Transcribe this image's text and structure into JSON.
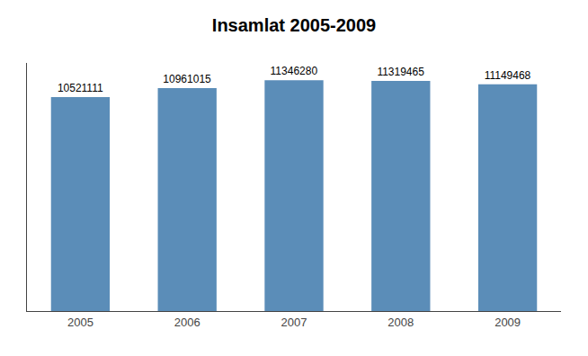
{
  "chart_data": {
    "type": "bar",
    "title": "Insamlat 2005-2009",
    "categories": [
      "2005",
      "2006",
      "2007",
      "2008",
      "2009"
    ],
    "values": [
      10521111,
      10961015,
      11346280,
      11319465,
      11149468
    ],
    "color": "#5B8DB8",
    "ylim": [
      0,
      12200000
    ],
    "data_labels": true,
    "tick_labels": "x",
    "grid": false
  }
}
